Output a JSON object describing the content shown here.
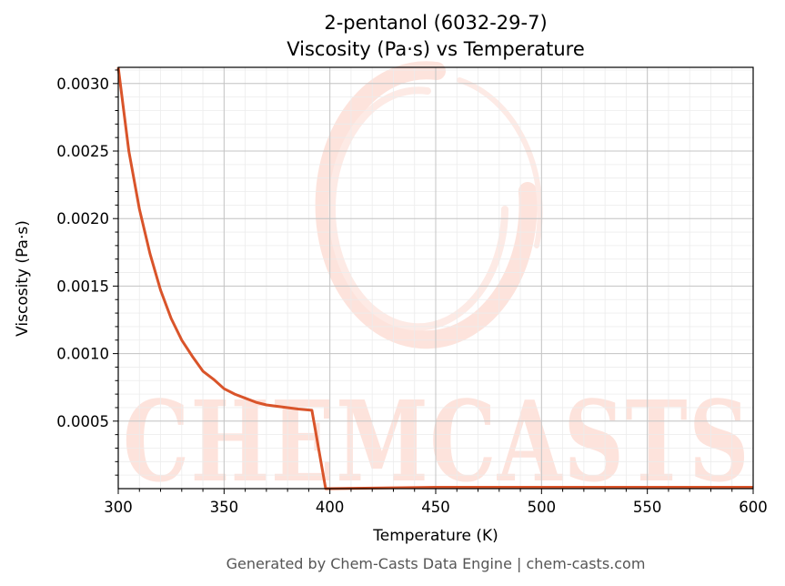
{
  "chart_data": {
    "type": "line",
    "title_line1": "2-pentanol (6032-29-7)",
    "title_line2": "Viscosity (Pa·s) vs Temperature",
    "xlabel": "Temperature (K)",
    "ylabel": "Viscosity (Pa·s)",
    "xlim": [
      300,
      600
    ],
    "ylim": [
      0,
      0.00312
    ],
    "xticks": [
      300,
      350,
      400,
      450,
      500,
      550,
      600
    ],
    "xtick_labels": [
      "300",
      "350",
      "400",
      "450",
      "500",
      "550",
      "600"
    ],
    "yticks": [
      0.0005,
      0.001,
      0.0015,
      0.002,
      0.0025,
      0.003
    ],
    "ytick_labels": [
      "0.0005",
      "0.0010",
      "0.0015",
      "0.0020",
      "0.0025",
      "0.0030"
    ],
    "grid": true,
    "series": [
      {
        "color": "#d9542a",
        "x": [
          300,
          305,
          310,
          315,
          320,
          325,
          330,
          335,
          340,
          345,
          350,
          355,
          360,
          365,
          370,
          375,
          380,
          385,
          391.5,
          398,
          400,
          450,
          500,
          550,
          600
        ],
        "y": [
          0.00312,
          0.0025,
          0.00207,
          0.00174,
          0.00147,
          0.00126,
          0.0011,
          0.00098,
          0.00087,
          0.00081,
          0.00074,
          0.0007,
          0.00067,
          0.00064,
          0.00062,
          0.00061,
          0.0006,
          0.00059,
          0.00058,
          0.0,
          0.0,
          1e-05,
          1e-05,
          1e-05,
          1e-05
        ]
      }
    ]
  },
  "watermark": {
    "text": "CHEMCASTS"
  },
  "footer": {
    "text": "Generated by Chem-Casts Data Engine | chem-casts.com"
  }
}
